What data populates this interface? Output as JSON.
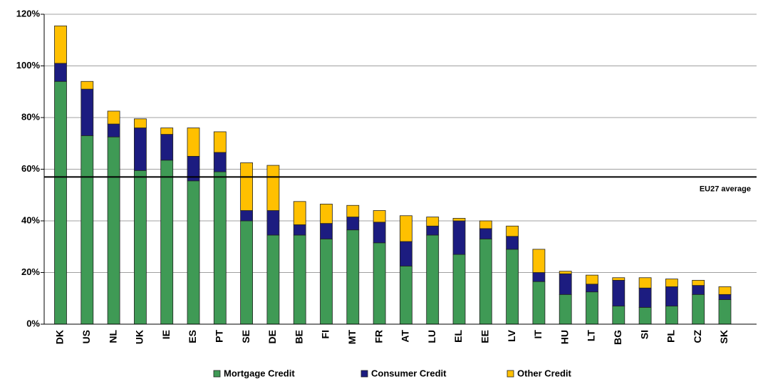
{
  "chart_data": {
    "type": "stacked_bar",
    "categories": [
      "DK",
      "US",
      "NL",
      "UK",
      "IE",
      "ES",
      "PT",
      "SE",
      "DE",
      "BE",
      "FI",
      "MT",
      "FR",
      "AT",
      "LU",
      "EL",
      "EE",
      "LV",
      "IT",
      "HU",
      "LT",
      "BG",
      "SI",
      "PL",
      "CZ",
      "SK"
    ],
    "series": [
      {
        "name": "Mortgage Credit",
        "color": "#3f9a55",
        "values": [
          94,
          73,
          72.5,
          59.5,
          63.5,
          55.5,
          59,
          40,
          34.5,
          34.5,
          33,
          36.5,
          31.5,
          22.5,
          34.5,
          27,
          33,
          29,
          16.5,
          11.5,
          12.5,
          7,
          6.5,
          7,
          11.5,
          9.5
        ]
      },
      {
        "name": "Consumer Credit",
        "color": "#1c1c80",
        "values": [
          7,
          18,
          5,
          16.5,
          10,
          9.5,
          7.5,
          4,
          9.5,
          4,
          6,
          5,
          8,
          9.5,
          3.5,
          13,
          4,
          5,
          3.5,
          8,
          3,
          10,
          7.5,
          7.5,
          3.5,
          2
        ]
      },
      {
        "name": "Other Credit",
        "color": "#ffc000",
        "values": [
          14.5,
          3,
          5,
          3.5,
          2.5,
          11,
          8,
          18.5,
          17.5,
          9,
          7.5,
          4.5,
          4.5,
          10,
          3.5,
          1,
          3,
          4,
          9,
          1,
          3.5,
          1,
          4,
          3,
          2,
          3
        ]
      }
    ],
    "ylim": [
      0,
      120
    ],
    "yticks": [
      {
        "value": 0,
        "label": "0%"
      },
      {
        "value": 20,
        "label": "20%"
      },
      {
        "value": 40,
        "label": "40%"
      },
      {
        "value": 60,
        "label": "60%"
      },
      {
        "value": 80,
        "label": "80%"
      },
      {
        "value": 100,
        "label": "100%"
      },
      {
        "value": 120,
        "label": "120%"
      }
    ],
    "grid": true,
    "reference_line": {
      "value": 57,
      "label": "EU27 average"
    },
    "legend": "bottom"
  }
}
